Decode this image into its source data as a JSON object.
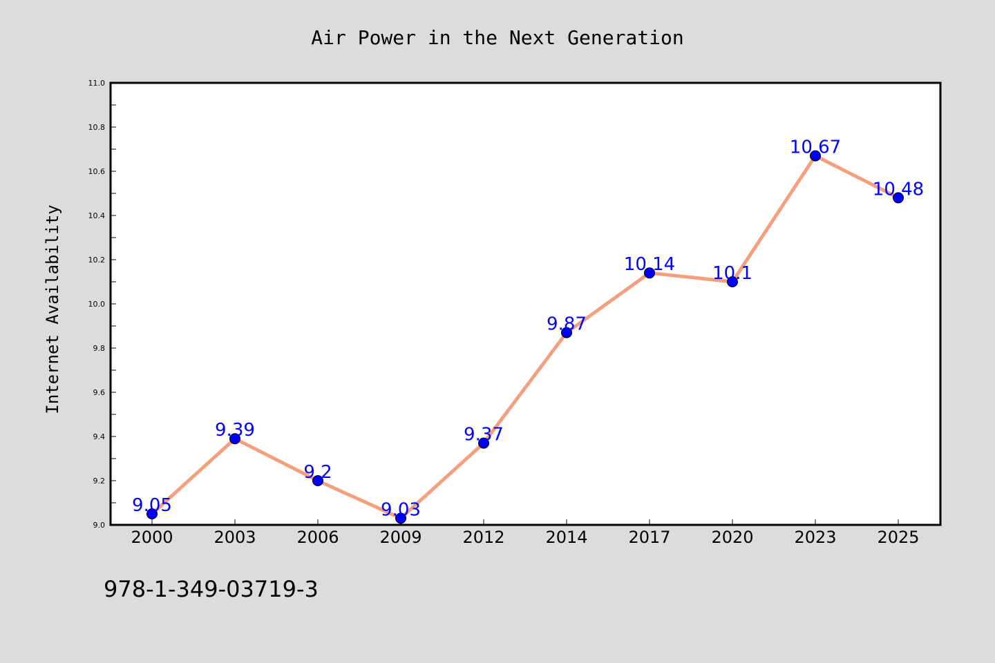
{
  "chart_data": {
    "type": "line",
    "title": "Air Power in the Next Generation",
    "ylabel": "Internet Availability",
    "xlabel": "",
    "categories": [
      "2000",
      "2003",
      "2006",
      "2009",
      "2012",
      "2014",
      "2017",
      "2020",
      "2023",
      "2025"
    ],
    "values": [
      9.05,
      9.39,
      9.2,
      9.03,
      9.37,
      9.87,
      10.14,
      10.1,
      10.67,
      10.48
    ],
    "data_labels": [
      "9.05",
      "9.39",
      "9.2",
      "9.03",
      "9.37",
      "9.87",
      "10.14",
      "10.1",
      "10.67",
      "10.48"
    ],
    "ylim": [
      9.0,
      11.0
    ],
    "yticks": [
      "9.0",
      "9.2",
      "9.4",
      "9.6",
      "9.8",
      "10.0",
      "10.2",
      "10.4",
      "10.6",
      "10.8",
      "11.0"
    ],
    "grid": false,
    "line_color": "#f4a07e",
    "marker_color": "#0000ff",
    "label_color": "#0000ff"
  },
  "footer": {
    "isbn": "978-1-349-03719-3"
  }
}
